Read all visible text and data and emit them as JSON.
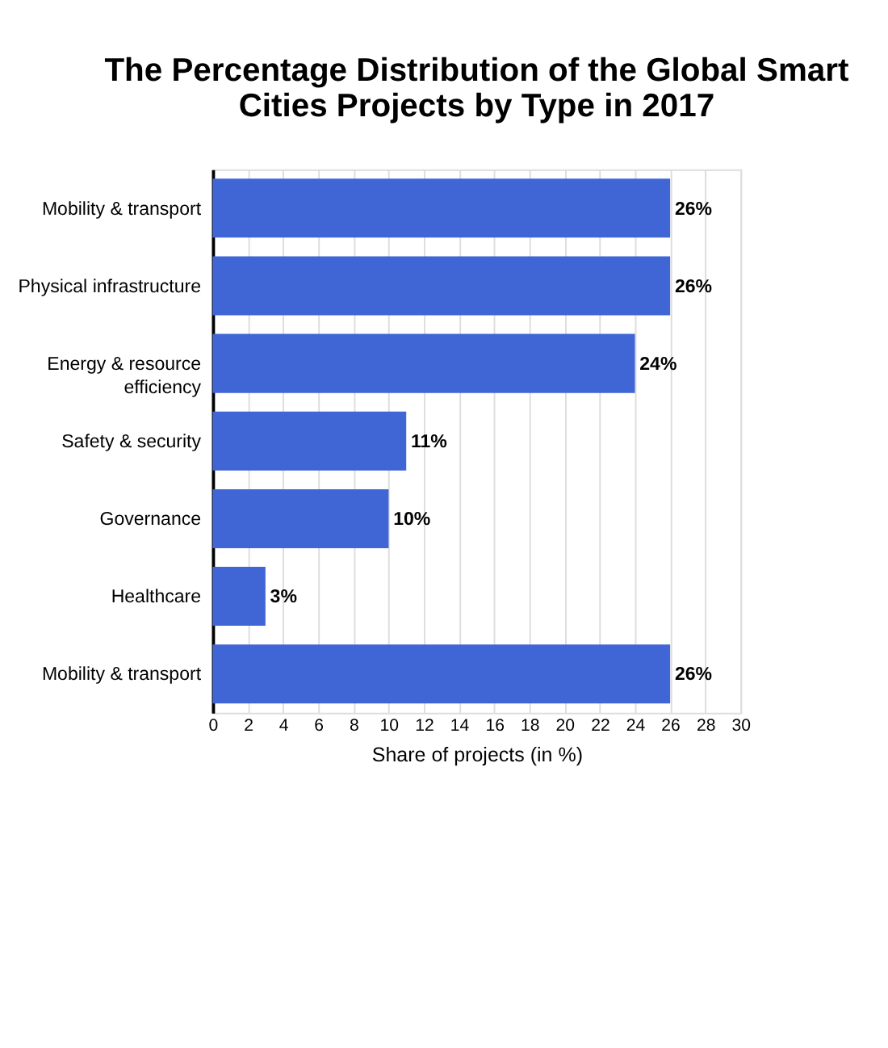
{
  "chart_data": {
    "type": "bar",
    "orientation": "horizontal",
    "title": "The Percentage Distribution of the Global Smart Cities Projects by Type in 2017",
    "xlabel": "Share of projects (in %)",
    "categories": [
      "Mobility & transport",
      "Physical infrastructure",
      "Energy & resource efficiency",
      "Safety & security",
      "Governance",
      "Healthcare",
      "Mobility & transport"
    ],
    "values": [
      26,
      26,
      24,
      11,
      10,
      3,
      26
    ],
    "value_labels": [
      "26%",
      "26%",
      "24%",
      "11%",
      "10%",
      "3%",
      "26%"
    ],
    "color": "#3f66d4",
    "xlim": [
      0,
      30
    ],
    "xticks": [
      0,
      2,
      4,
      6,
      8,
      10,
      12,
      14,
      16,
      18,
      20,
      22,
      24,
      26,
      28,
      30
    ],
    "grid": "x"
  }
}
